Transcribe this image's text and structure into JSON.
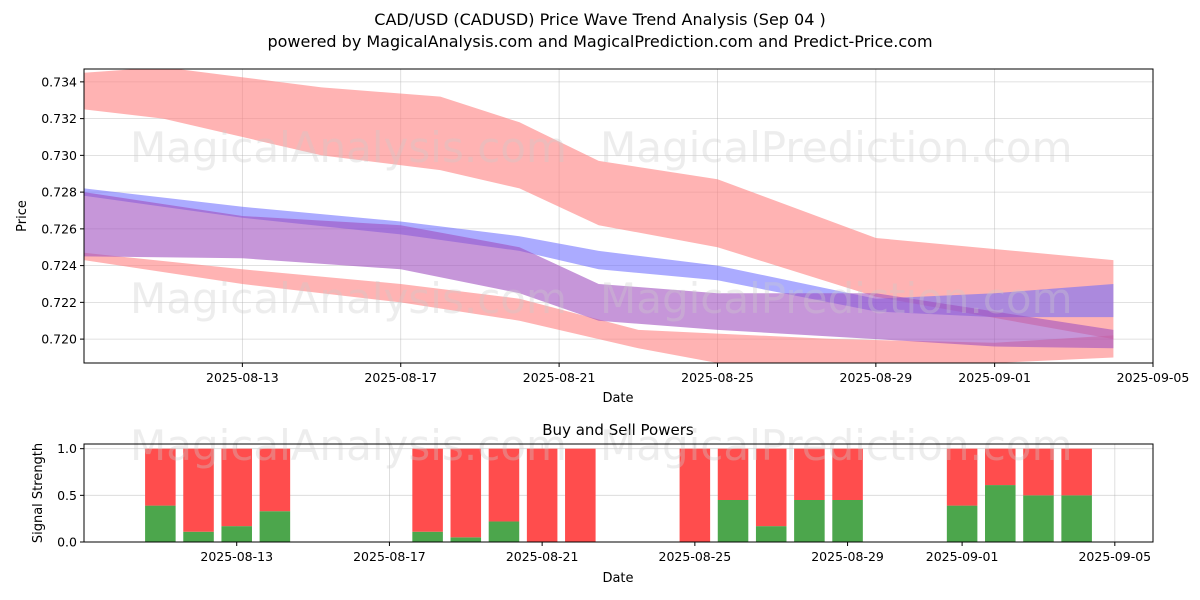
{
  "chart_data": [
    {
      "type": "area",
      "title": "CAD/USD (CADUSD) Price Wave Trend Analysis (Sep 04 )",
      "subtitle": "powered by MagicalAnalysis.com and MagicalPrediction.com and Predict-Price.com",
      "xlabel": "Date",
      "ylabel": "Price",
      "xlim": [
        "2025-08-09",
        "2025-09-05"
      ],
      "ylim": [
        0.7187,
        0.7347
      ],
      "x_ticks": [
        "2025-08-13",
        "2025-08-17",
        "2025-08-21",
        "2025-08-25",
        "2025-08-29",
        "2025-09-01",
        "2025-09-05"
      ],
      "y_ticks": [
        "0.720",
        "0.722",
        "0.724",
        "0.726",
        "0.728",
        "0.730",
        "0.732",
        "0.734"
      ],
      "grid": true,
      "watermarks": [
        "MagicalAnalysis.com",
        "MagicalPrediction.com",
        "MagicalAnalysis.com",
        "MagicalPrediction.com"
      ],
      "bands": [
        {
          "name": "red-upper",
          "color": "#ff8080",
          "opacity": 0.6,
          "dates": [
            "2025-08-09",
            "2025-08-11",
            "2025-08-15",
            "2025-08-18",
            "2025-08-20",
            "2025-08-22",
            "2025-08-25",
            "2025-08-29",
            "2025-09-04"
          ],
          "upper": [
            0.7345,
            0.7348,
            0.7337,
            0.7332,
            0.7318,
            0.7297,
            0.7287,
            0.7255,
            0.7243
          ],
          "lower": [
            0.7325,
            0.732,
            0.73,
            0.7292,
            0.7282,
            0.7262,
            0.725,
            0.7223,
            0.72
          ]
        },
        {
          "name": "red-lower",
          "color": "#ff8080",
          "opacity": 0.6,
          "dates": [
            "2025-08-09",
            "2025-08-13",
            "2025-08-17",
            "2025-08-20",
            "2025-08-23",
            "2025-08-25",
            "2025-08-28",
            "2025-09-01",
            "2025-09-04"
          ],
          "upper": [
            0.7247,
            0.7238,
            0.723,
            0.7222,
            0.7205,
            0.7203,
            0.72,
            0.7198,
            0.7202
          ],
          "lower": [
            0.7243,
            0.723,
            0.722,
            0.721,
            0.7195,
            0.7187,
            0.7187,
            0.7187,
            0.719
          ]
        },
        {
          "name": "blue-main",
          "color": "#6666ff",
          "opacity": 0.55,
          "dates": [
            "2025-08-09",
            "2025-08-13",
            "2025-08-17",
            "2025-08-20",
            "2025-08-22",
            "2025-08-25",
            "2025-08-29",
            "2025-09-01",
            "2025-09-04"
          ],
          "upper": [
            0.7282,
            0.7272,
            0.7264,
            0.7256,
            0.7248,
            0.724,
            0.7222,
            0.7225,
            0.723
          ],
          "lower": [
            0.7278,
            0.7266,
            0.7257,
            0.7248,
            0.7238,
            0.7232,
            0.7215,
            0.7212,
            0.7212
          ]
        },
        {
          "name": "purple-main",
          "color": "#a050c0",
          "opacity": 0.6,
          "dates": [
            "2025-08-09",
            "2025-08-13",
            "2025-08-17",
            "2025-08-20",
            "2025-08-22",
            "2025-08-25",
            "2025-08-29",
            "2025-09-01",
            "2025-09-04"
          ],
          "upper": [
            0.728,
            0.7267,
            0.7262,
            0.725,
            0.723,
            0.7225,
            0.7225,
            0.7215,
            0.7205
          ],
          "lower": [
            0.7245,
            0.7244,
            0.7238,
            0.7225,
            0.721,
            0.7205,
            0.72,
            0.7196,
            0.7195
          ]
        }
      ],
      "histogram": {
        "title": "Buy and Sell Powers",
        "xlabel": "Date",
        "ylabel": "Signal Strength",
        "ylim": [
          0,
          1.05
        ],
        "y_ticks": [
          "0.0",
          "0.5",
          "1.0"
        ],
        "x_ticks": [
          "2025-08-13",
          "2025-08-17",
          "2025-08-21",
          "2025-08-25",
          "2025-08-29",
          "2025-09-01",
          "2025-09-05"
        ],
        "dates": [
          "2025-08-11",
          "2025-08-12",
          "2025-08-13",
          "2025-08-14",
          "2025-08-18",
          "2025-08-19",
          "2025-08-20",
          "2025-08-21",
          "2025-08-22",
          "2025-08-25",
          "2025-08-26",
          "2025-08-27",
          "2025-08-28",
          "2025-08-29",
          "2025-09-01",
          "2025-09-02",
          "2025-09-03",
          "2025-09-04"
        ],
        "buy": [
          0.39,
          0.11,
          0.17,
          0.33,
          0.11,
          0.05,
          0.22,
          0.0,
          0.0,
          0.0,
          0.45,
          0.17,
          0.45,
          0.45,
          0.39,
          0.61,
          0.5,
          0.5
        ],
        "sell": [
          0.61,
          0.89,
          0.83,
          0.67,
          0.89,
          0.95,
          0.78,
          1.0,
          1.0,
          1.0,
          0.55,
          0.83,
          0.55,
          0.55,
          0.61,
          0.39,
          0.5,
          0.5
        ],
        "buy_color": "#4ca64c",
        "sell_color": "#ff4d4d"
      }
    }
  ]
}
